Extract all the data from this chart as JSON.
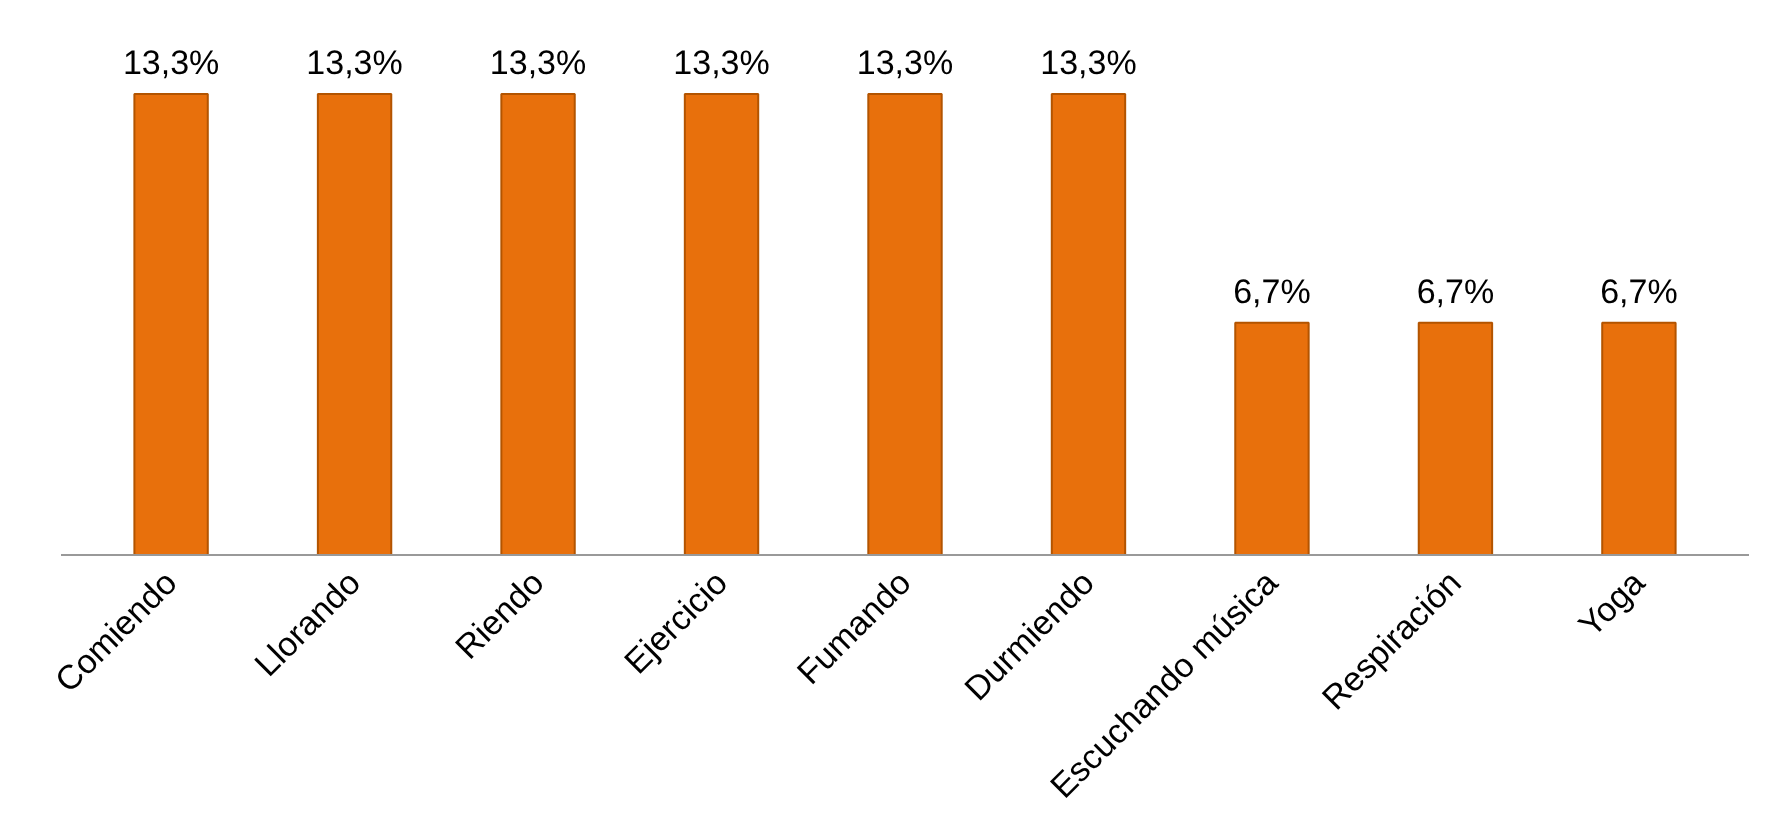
{
  "chart_data": {
    "type": "bar",
    "categories": [
      "Comiendo",
      "Llorando",
      "Riendo",
      "Ejercicio",
      "Fumando",
      "Durmiendo",
      "Escuchando música",
      "Respiración",
      "Yoga"
    ],
    "values": [
      13.3,
      13.3,
      13.3,
      13.3,
      13.3,
      13.3,
      6.7,
      6.7,
      6.7
    ],
    "value_labels": [
      "13,3%",
      "13,3%",
      "13,3%",
      "13,3%",
      "13,3%",
      "13,3%",
      "6,7%",
      "6,7%",
      "6,7%"
    ],
    "color": "#e8700c",
    "grid": false
  }
}
